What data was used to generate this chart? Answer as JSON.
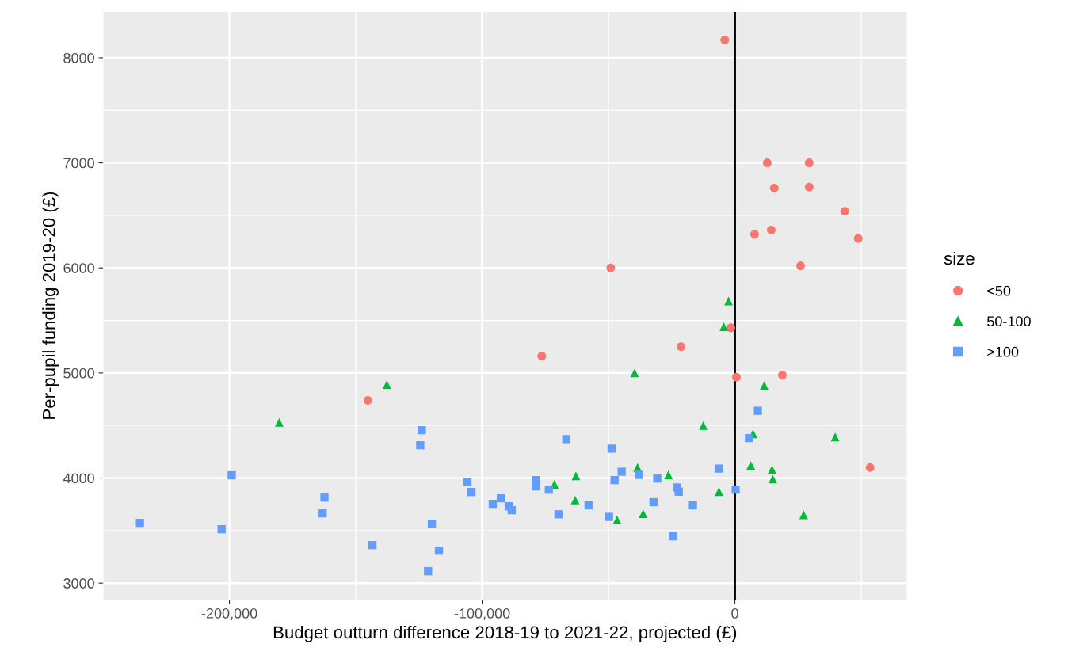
{
  "chart_data": {
    "type": "scatter",
    "xlabel": "Budget outturn difference 2018-19 to 2021-22, projected (£)",
    "ylabel": "Per-pupil funding 2019-20 (£)",
    "legend_title": "size",
    "xlim": [
      -250000,
      68000
    ],
    "ylim": [
      2842,
      8437
    ],
    "xticks": [
      {
        "value": -200000,
        "label": "-200,000"
      },
      {
        "value": -100000,
        "label": "-100,000"
      },
      {
        "value": 0,
        "label": "0"
      }
    ],
    "yticks": [
      3000,
      4000,
      5000,
      6000,
      7000,
      8000
    ],
    "grid": true,
    "legend": "right",
    "ref_lines": [
      {
        "axis": "x",
        "value": 0,
        "color": "#000000",
        "line_style": "solid"
      }
    ],
    "series": [
      {
        "name": "<50",
        "color": "#f8766d",
        "marker": "circle",
        "x": [
          -4000,
          12800,
          29400,
          15600,
          29400,
          43500,
          7800,
          14400,
          48800,
          -49100,
          26000,
          -1600,
          -21300,
          -76400,
          600,
          18800,
          -145200,
          53500
        ],
        "values": [
          8170,
          7000,
          7000,
          6760,
          6770,
          6540,
          6320,
          6360,
          6280,
          6000,
          6020,
          5430,
          5250,
          5160,
          4960,
          4980,
          4740,
          4100
        ]
      },
      {
        "name": "50-100",
        "color": "#00ba38",
        "marker": "triangle",
        "x": [
          -2500,
          -4400,
          -39700,
          -137700,
          -180300,
          11600,
          -12500,
          7200,
          39700,
          6300,
          14700,
          15000,
          -6300,
          27200,
          -26300,
          -38500,
          -62900,
          -71400,
          -63200,
          -46600,
          -36300
        ],
        "values": [
          5685,
          5440,
          5000,
          4890,
          4530,
          4880,
          4500,
          4420,
          4390,
          4120,
          4080,
          3990,
          3870,
          3650,
          4030,
          4100,
          4020,
          3940,
          3790,
          3600,
          3660
        ]
      },
      {
        "name": ">100",
        "color": "#619cff",
        "marker": "square",
        "x": [
          -235400,
          -203100,
          -199100,
          -123900,
          -124500,
          -162400,
          -163100,
          -119900,
          -143400,
          -117100,
          -121400,
          -105800,
          -104200,
          -95800,
          -92600,
          -89500,
          -88300,
          -78600,
          -78600,
          -73600,
          -69800,
          -66700,
          -57900,
          -49800,
          -48800,
          -47600,
          -44800,
          -37900,
          -32200,
          -30700,
          -24400,
          -22800,
          -22200,
          -16600,
          -6300,
          300,
          5600,
          9100
        ],
        "values": [
          3573,
          3513,
          4026,
          4455,
          4312,
          3814,
          3664,
          3566,
          3362,
          3309,
          3113,
          3965,
          3867,
          3754,
          3807,
          3731,
          3694,
          3980,
          3920,
          3890,
          3655,
          4370,
          3740,
          3630,
          4280,
          3980,
          4060,
          4030,
          3770,
          3995,
          3445,
          3910,
          3870,
          3740,
          4090,
          3890,
          4380,
          4640
        ]
      }
    ]
  }
}
